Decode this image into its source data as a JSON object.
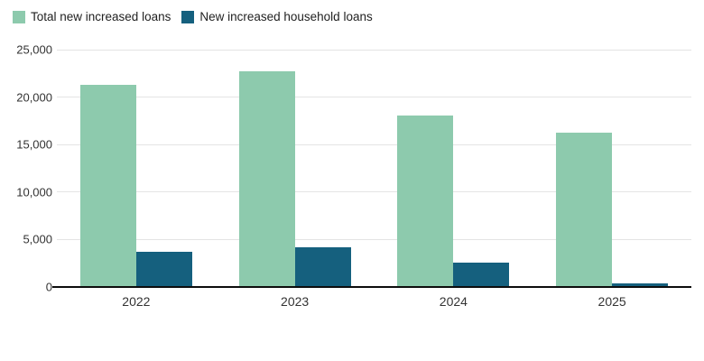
{
  "legend": {
    "items": [
      {
        "label": "Total new increased loans",
        "color": "#8DCAAD"
      },
      {
        "label": "New increased household loans",
        "color": "#15607E"
      }
    ]
  },
  "chart_data": {
    "type": "bar",
    "categories": [
      "2022",
      "2023",
      "2024",
      "2025"
    ],
    "series": [
      {
        "name": "Total new increased loans",
        "color": "#8DCAAD",
        "values": [
          21300,
          22700,
          18100,
          16300
        ]
      },
      {
        "name": "New increased household loans",
        "color": "#15607E",
        "values": [
          3700,
          4200,
          2600,
          400
        ]
      }
    ],
    "title": "",
    "xlabel": "",
    "ylabel": "",
    "ylim": [
      0,
      25000
    ],
    "ytick_interval": 5000,
    "yticks": [
      0,
      5000,
      10000,
      15000,
      20000,
      25000
    ],
    "ytick_labels": [
      "0",
      "5,000",
      "10,000",
      "15,000",
      "20,000",
      "25,000"
    ],
    "grid": true,
    "legend_position": "top-left",
    "colors": {
      "gridline": "#e4e4e4",
      "axis_line": "#0d0d0d",
      "tick_text": "#333333"
    }
  }
}
